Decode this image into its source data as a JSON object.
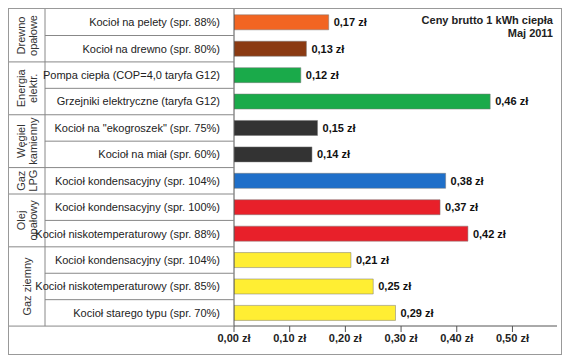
{
  "chart_data": {
    "type": "bar",
    "orientation": "horizontal",
    "title": "Ceny brutto 1 kWh ciepła",
    "subtitle": "Maj 2011",
    "categories": [
      "Kocioł na pelety (spr. 88%)",
      "Kocioł na drewno (spr. 80%)",
      "Pompa ciepła (COP=4,0 taryfa G12)",
      "Grzejniki elektryczne (taryfa G12)",
      "Kocioł na \"ekogroszek\" (spr. 75%)",
      "Kocioł na miał (spr. 60%)",
      "Kocioł kondensacyjny (spr. 104%)",
      "Kocioł kondensacyjny (spr. 100%)",
      "Kocioł niskotemperaturowy (spr. 88%)",
      "Kocioł kondensacyjny (spr. 104%)",
      "Kocioł niskotemperaturowy (spr. 85%)",
      "Kocioł starego typu (spr. 70%)"
    ],
    "category_groups": [
      "Drewno opałowe",
      "Drewno opałowe",
      "Energia elektr.",
      "Energia elektr.",
      "Węgiel kamienny",
      "Węgiel kamienny",
      "Gaz LPG",
      "Olej opałowy",
      "Olej opałowy",
      "Gaz ziemny",
      "Gaz ziemny",
      "Gaz ziemny"
    ],
    "values": [
      0.17,
      0.13,
      0.12,
      0.46,
      0.15,
      0.14,
      0.38,
      0.37,
      0.42,
      0.21,
      0.25,
      0.29
    ],
    "value_labels": [
      "0,17 zł",
      "0,13 zł",
      "0,12 zł",
      "0,46 zł",
      "0,15 zł",
      "0,14 zł",
      "0,38 zł",
      "0,37 zł",
      "0,42 zł",
      "0,21 zł",
      "0,25 zł",
      "0,29 zł"
    ],
    "colors": [
      "#f26522",
      "#8b3a12",
      "#1aaa4a",
      "#1aaa4a",
      "#333333",
      "#333333",
      "#1f6fc9",
      "#e8202a",
      "#e8202a",
      "#ffee33",
      "#ffee33",
      "#ffee33"
    ],
    "xlim": [
      0,
      0.58
    ],
    "xticks": [
      {
        "value": 0,
        "label": "0,00 zł"
      },
      {
        "value": 0.1,
        "label": "0,10 zł"
      },
      {
        "value": 0.2,
        "label": "0,20 zł"
      },
      {
        "value": 0.3,
        "label": "0,30 zł"
      },
      {
        "value": 0.4,
        "label": "0,40 zł"
      },
      {
        "value": 0.5,
        "label": "0,50 zł"
      }
    ],
    "grid": false,
    "data_labels": true
  }
}
